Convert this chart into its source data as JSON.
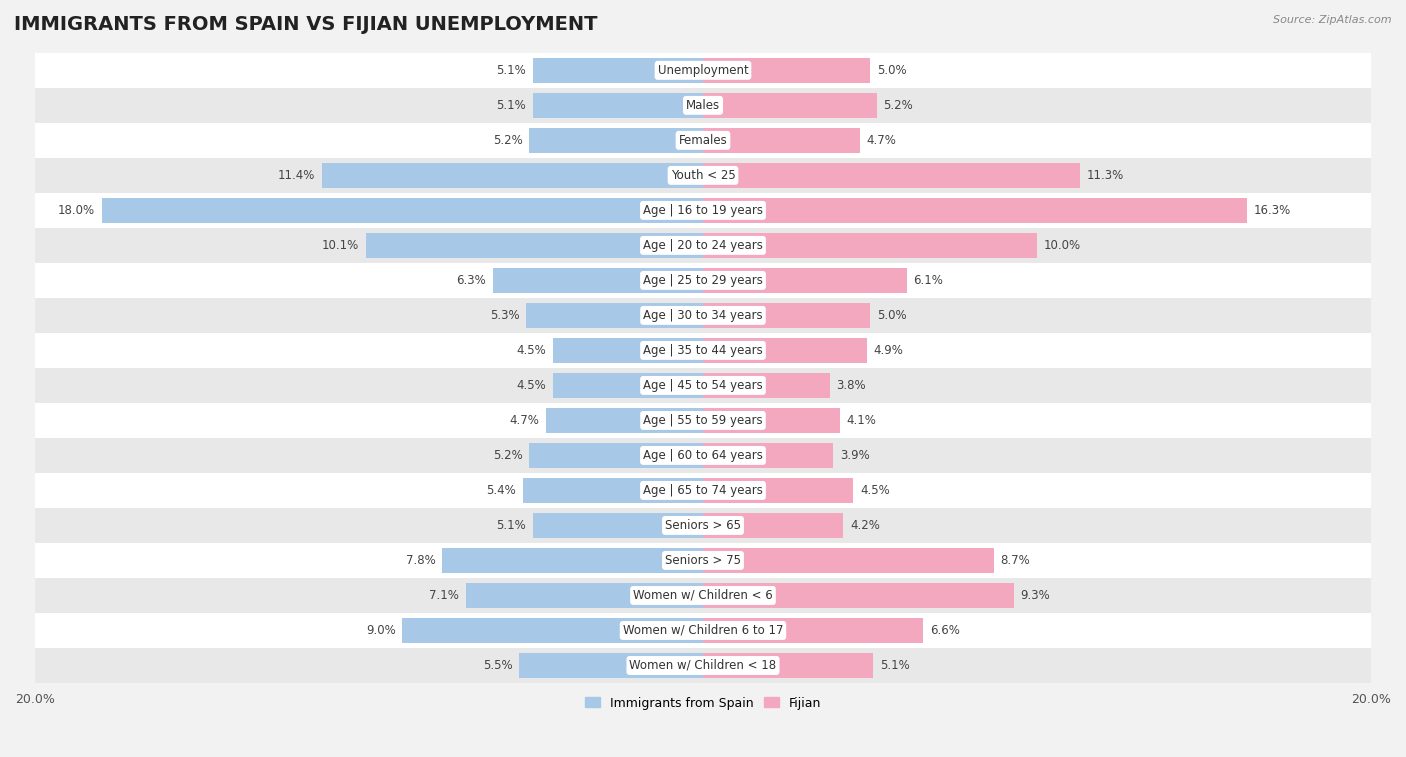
{
  "title": "IMMIGRANTS FROM SPAIN VS FIJIAN UNEMPLOYMENT",
  "source": "Source: ZipAtlas.com",
  "categories": [
    "Unemployment",
    "Males",
    "Females",
    "Youth < 25",
    "Age | 16 to 19 years",
    "Age | 20 to 24 years",
    "Age | 25 to 29 years",
    "Age | 30 to 34 years",
    "Age | 35 to 44 years",
    "Age | 45 to 54 years",
    "Age | 55 to 59 years",
    "Age | 60 to 64 years",
    "Age | 65 to 74 years",
    "Seniors > 65",
    "Seniors > 75",
    "Women w/ Children < 6",
    "Women w/ Children 6 to 17",
    "Women w/ Children < 18"
  ],
  "spain_values": [
    5.1,
    5.1,
    5.2,
    11.4,
    18.0,
    10.1,
    6.3,
    5.3,
    4.5,
    4.5,
    4.7,
    5.2,
    5.4,
    5.1,
    7.8,
    7.1,
    9.0,
    5.5
  ],
  "fijian_values": [
    5.0,
    5.2,
    4.7,
    11.3,
    16.3,
    10.0,
    6.1,
    5.0,
    4.9,
    3.8,
    4.1,
    3.9,
    4.5,
    4.2,
    8.7,
    9.3,
    6.6,
    5.1
  ],
  "spain_color": "#a8c8e8",
  "fijian_color": "#f4a8c0",
  "axis_max": 20.0,
  "bar_height": 0.72,
  "background_color": "#f2f2f2",
  "row_colors_odd": "#ffffff",
  "row_colors_even": "#e8e8e8",
  "title_fontsize": 14,
  "label_fontsize": 8.5,
  "value_fontsize": 8.5
}
